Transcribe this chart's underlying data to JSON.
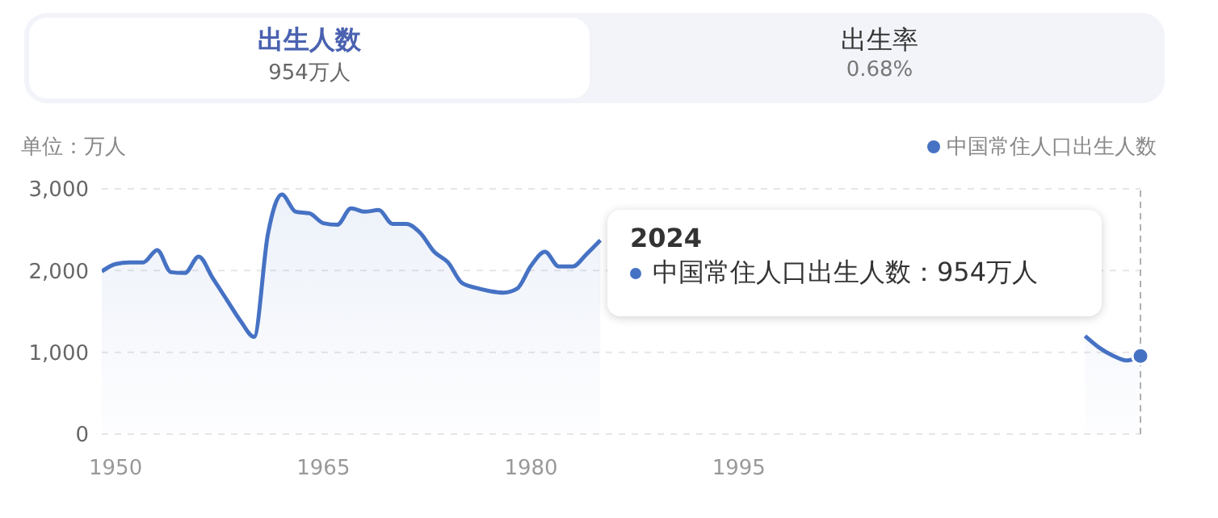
{
  "chart_data": {
    "type": "area",
    "ylabel": "单位：万人",
    "legend": "top right",
    "grid": "y",
    "marker": "none",
    "line_style": "solid",
    "x": [
      1949,
      1950,
      1951,
      1952,
      1953,
      1954,
      1955,
      1956,
      1957,
      1958,
      1959,
      1960,
      1961,
      1962,
      1963,
      1964,
      1965,
      1966,
      1967,
      1968,
      1969,
      1970,
      1971,
      1972,
      1973,
      1974,
      1975,
      1976,
      1977,
      1978,
      1979,
      1980,
      1981,
      1982,
      1983,
      1984,
      1985,
      1986,
      1987,
      1988,
      1989,
      1990,
      1991,
      1992,
      1993,
      1994,
      1995,
      1996,
      1997,
      1998,
      1999,
      2000,
      2001,
      2002,
      2003,
      2004,
      2005,
      2006,
      2007,
      2008,
      2009,
      2010,
      2011,
      2012,
      2013,
      2014,
      2015,
      2016,
      2017,
      2018,
      2019,
      2020,
      2021,
      2022,
      2023,
      2024
    ],
    "series": [
      {
        "name": "中国常住人口出生人数",
        "color": "#4672c4",
        "values": [
          1990,
          2080,
          2100,
          2100,
          2250,
          1980,
          1970,
          2170,
          1910,
          1650,
          1390,
          1190,
          2450,
          2930,
          2720,
          2700,
          2580,
          2560,
          2760,
          2720,
          2740,
          2570,
          2570,
          2460,
          2230,
          2100,
          1850,
          1790,
          1750,
          1730,
          1780,
          2060,
          2230,
          2050,
          2050,
          2200,
          2370,
          null,
          null,
          null,
          null,
          null,
          null,
          null,
          null,
          null,
          null,
          null,
          null,
          null,
          null,
          null,
          null,
          null,
          null,
          null,
          null,
          null,
          null,
          null,
          null,
          null,
          null,
          null,
          null,
          null,
          null,
          null,
          null,
          null,
          null,
          1200,
          1060,
          960,
          900,
          954
        ]
      }
    ],
    "xlim": [
      1949,
      2024
    ],
    "xticks": [
      1950,
      1965,
      1980,
      1995
    ],
    "ylim": [
      0,
      3000
    ],
    "yticks": [
      {
        "value": 0,
        "label": "0"
      },
      {
        "value": 1000,
        "label": "1,000"
      },
      {
        "value": 2000,
        "label": "2,000"
      },
      {
        "value": 3000,
        "label": "3,000"
      }
    ],
    "ref_lines": [
      {
        "axis": "x",
        "value": 2024,
        "color": "#b0b0b0",
        "line_style": "dashed"
      }
    ],
    "annotations": [
      "出生人数",
      "954万人",
      "出生率",
      "0.68%",
      "2024",
      "中国常住人口出生人数：954万人"
    ]
  }
}
